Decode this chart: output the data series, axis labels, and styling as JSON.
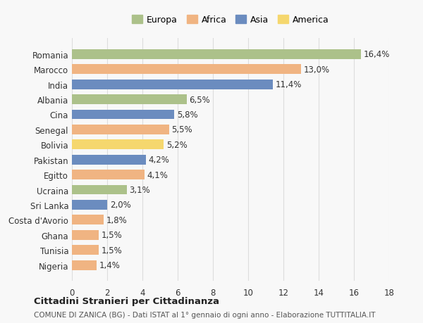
{
  "countries": [
    "Romania",
    "Marocco",
    "India",
    "Albania",
    "Cina",
    "Senegal",
    "Bolivia",
    "Pakistan",
    "Egitto",
    "Ucraina",
    "Sri Lanka",
    "Costa d'Avorio",
    "Ghana",
    "Tunisia",
    "Nigeria"
  ],
  "values": [
    16.4,
    13.0,
    11.4,
    6.5,
    5.8,
    5.5,
    5.2,
    4.2,
    4.1,
    3.1,
    2.0,
    1.8,
    1.5,
    1.5,
    1.4
  ],
  "labels": [
    "16,4%",
    "13,0%",
    "11,4%",
    "6,5%",
    "5,8%",
    "5,5%",
    "5,2%",
    "4,2%",
    "4,1%",
    "3,1%",
    "2,0%",
    "1,8%",
    "1,5%",
    "1,5%",
    "1,4%"
  ],
  "continents": [
    "Europa",
    "Africa",
    "Asia",
    "Europa",
    "Asia",
    "Africa",
    "America",
    "Asia",
    "Africa",
    "Europa",
    "Asia",
    "Africa",
    "Africa",
    "Africa",
    "Africa"
  ],
  "continent_colors": {
    "Europa": "#acc18a",
    "Africa": "#f0b482",
    "Asia": "#6b8cbf",
    "America": "#f5d76e"
  },
  "legend_order": [
    "Europa",
    "Africa",
    "Asia",
    "America"
  ],
  "title": "Cittadini Stranieri per Cittadinanza",
  "subtitle": "COMUNE DI ZANICA (BG) - Dati ISTAT al 1° gennaio di ogni anno - Elaborazione TUTTITALIA.IT",
  "xlim": [
    0,
    18
  ],
  "xticks": [
    0,
    2,
    4,
    6,
    8,
    10,
    12,
    14,
    16,
    18
  ],
  "background_color": "#f8f8f8",
  "grid_color": "#dddddd"
}
